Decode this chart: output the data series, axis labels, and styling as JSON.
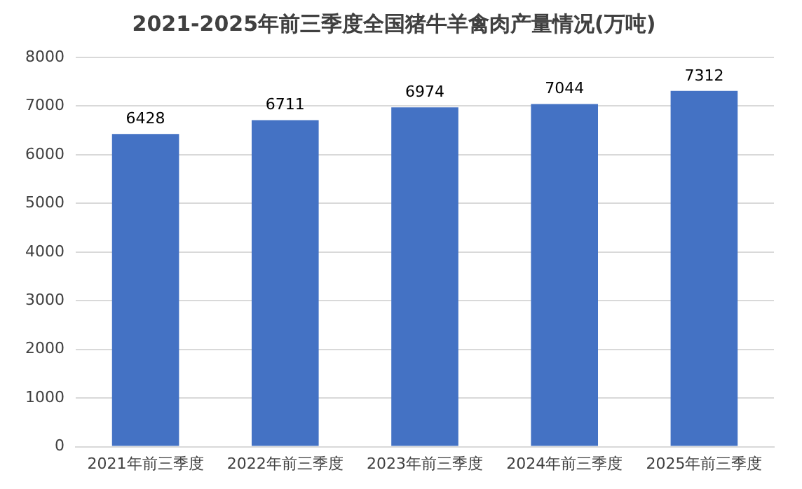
{
  "chart_data": {
    "type": "bar",
    "title": "2021-2025年前三季度全国猪牛羊禽肉产量情况(万吨)",
    "categories": [
      "2021年前三季度",
      "2022年前三季度",
      "2023年前三季度",
      "2024年前三季度",
      "2025年前三季度"
    ],
    "values": [
      6428,
      6711,
      6974,
      7044,
      7312
    ],
    "color": "#4472c4",
    "ylim": [
      0,
      8000
    ],
    "yticks": [
      0,
      1000,
      2000,
      3000,
      4000,
      5000,
      6000,
      7000,
      8000
    ],
    "grid": "y",
    "data_labels": true
  }
}
